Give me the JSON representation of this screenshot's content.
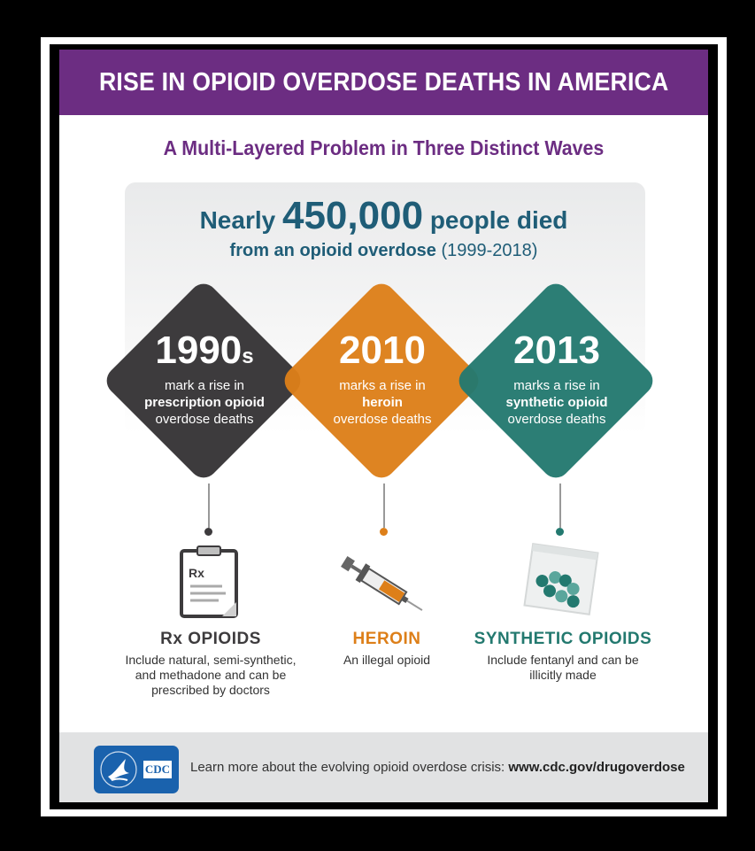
{
  "title": "RISE IN OPIOID OVERDOSE DEATHS IN AMERICA",
  "subtitle": "A Multi-Layered Problem in Three Distinct Waves",
  "stat": {
    "prefix": "Nearly",
    "number": "450,000",
    "suffix": "people died",
    "line2_bold": "from an opioid overdose",
    "line2_years": "(1999-2018)"
  },
  "waves": [
    {
      "year": "1990",
      "year_suffix": "s",
      "line1": "mark a rise in",
      "line2": "prescription opioid",
      "line3": "overdose deaths",
      "color": "#3d3b3d"
    },
    {
      "year": "2010",
      "year_suffix": "",
      "line1": "marks a rise in",
      "line2": "heroin",
      "line3": "overdose deaths",
      "color": "#dd7f19"
    },
    {
      "year": "2013",
      "year_suffix": "",
      "line1": "marks a rise in",
      "line2": "synthetic opioid",
      "line3": "overdose deaths",
      "color": "#23796f"
    }
  ],
  "categories": [
    {
      "name": "Rx OPIOIDS",
      "desc": "Include natural, semi-synthetic, and methadone and can be prescribed by doctors",
      "icon": "clipboard-icon",
      "icon_label": "Rx"
    },
    {
      "name": "HEROIN",
      "desc": "An illegal opioid",
      "icon": "syringe-icon"
    },
    {
      "name": "SYNTHETIC OPIOIDS",
      "desc": "Include fentanyl and can be illicitly made",
      "icon": "pill-bag-icon"
    }
  ],
  "footer": {
    "logo_text": "CDC",
    "text": "Learn more about the evolving opioid overdose crisis:",
    "url": "www.cdc.gov/drugoverdose"
  },
  "colors": {
    "header": "#6c2d82",
    "stat": "#1f5d77",
    "footer": "#e1e2e3",
    "cdc_blue": "#1a62ad"
  }
}
